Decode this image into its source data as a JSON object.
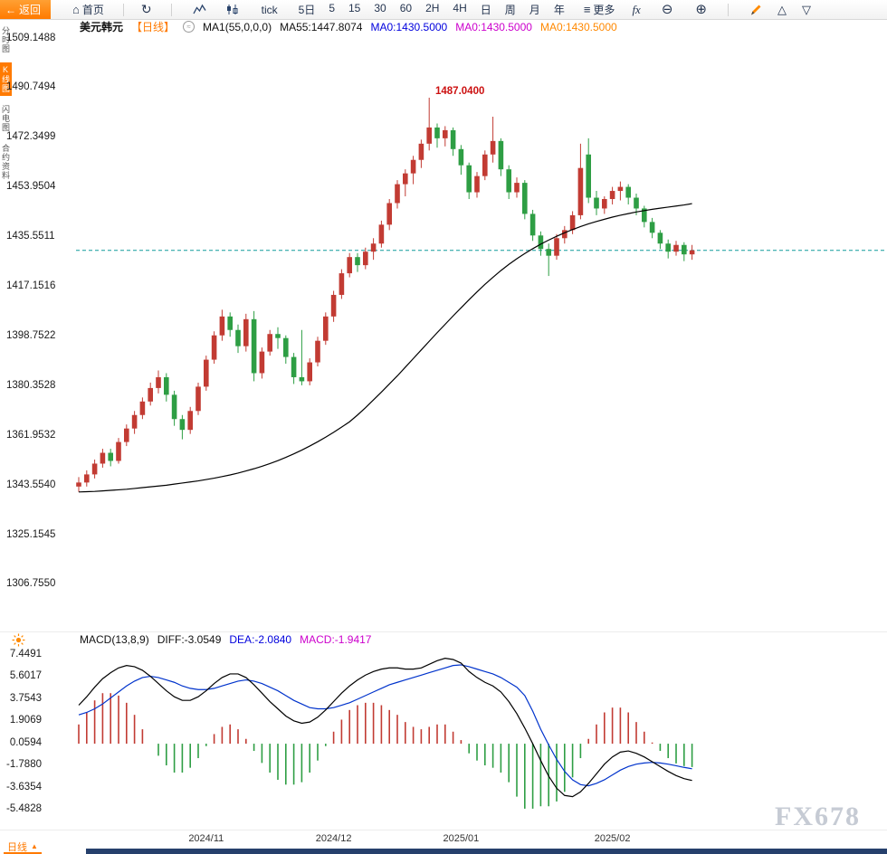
{
  "toolbar": {
    "back_label": "返回",
    "home_label": "首页",
    "tick_label": "tick",
    "periods": [
      "5日",
      "5",
      "15",
      "30",
      "60",
      "2H",
      "4H",
      "日",
      "周",
      "月",
      "年"
    ],
    "more_label": "更多",
    "fx_label": "fx",
    "accent_color": "#ff7a00"
  },
  "sidebar": {
    "items": [
      {
        "name": "sidebar-tab-time-chart",
        "label": "分时图",
        "active": false
      },
      {
        "name": "sidebar-tab-kline-chart",
        "label": "K线图",
        "active": true
      },
      {
        "name": "sidebar-tab-lightning-chart",
        "label": "闪电图",
        "active": false
      },
      {
        "name": "sidebar-tab-contract-info",
        "label": "合约资料",
        "active": false
      }
    ]
  },
  "chart_header": {
    "symbol": "美元韩元",
    "period_tag": "【日线】",
    "ma_param": "MA1(55,0,0,0)",
    "ma55_value": "MA55:1447.8074",
    "ma0_blue": "MA0:1430.5000",
    "ma0_magenta": "MA0:1430.5000",
    "ma0_orange": "MA0:1430.5000"
  },
  "macd_header": {
    "param": "MACD(13,8,9)",
    "diff_label": "DIFF:-3.0549",
    "dea_label": "DEA:-2.0840",
    "macd_label": "MACD:-1.9417"
  },
  "peak_label": "1487.0400",
  "footer": {
    "tab": "日线",
    "arrow": "▲"
  },
  "watermark": "FX678",
  "chart_data": {
    "type": "candlestick",
    "title": "美元韩元 日线 (USD/KRW Daily) with MA55 and MACD(13,8,9)",
    "price_axis_labels": [
      "1509.1488",
      "1490.7494",
      "1472.3499",
      "1453.9504",
      "1435.5511",
      "1417.1516",
      "1398.7522",
      "1380.3528",
      "1361.9532",
      "1343.5540",
      "1325.1545",
      "1306.7550"
    ],
    "macd_axis_labels": [
      "7.4491",
      "5.6017",
      "3.7543",
      "1.9069",
      "0.0594",
      "-1.7880",
      "-3.6354",
      "-5.4828"
    ],
    "x_axis_labels": [
      {
        "label": "2024/11",
        "index": 16
      },
      {
        "label": "2024/12",
        "index": 32
      },
      {
        "label": "2025/01",
        "index": 48
      },
      {
        "label": "2025/02",
        "index": 67
      }
    ],
    "price_range": {
      "top": 1509.1488,
      "bottom": 1306.755
    },
    "macd_range": {
      "top": 7.4491,
      "bottom": -5.4828
    },
    "last_price": 1430.5,
    "peak_price": 1487.04,
    "candles_ohlc": [
      [
        1343.0,
        1346.5,
        1341.0,
        1344.5
      ],
      [
        1344.5,
        1349.0,
        1343.0,
        1347.5
      ],
      [
        1347.5,
        1353.0,
        1346.0,
        1351.5
      ],
      [
        1351.5,
        1357.0,
        1350.0,
        1355.5
      ],
      [
        1355.5,
        1357.0,
        1350.5,
        1352.5
      ],
      [
        1352.5,
        1361.0,
        1351.5,
        1359.5
      ],
      [
        1359.5,
        1366.0,
        1358.0,
        1364.5
      ],
      [
        1364.5,
        1371.0,
        1362.5,
        1369.5
      ],
      [
        1369.5,
        1376.0,
        1368.0,
        1374.5
      ],
      [
        1374.5,
        1381.5,
        1373.0,
        1379.5
      ],
      [
        1379.5,
        1386.0,
        1377.5,
        1383.5
      ],
      [
        1383.5,
        1385.0,
        1374.5,
        1377.0
      ],
      [
        1377.0,
        1378.5,
        1365.5,
        1368.0
      ],
      [
        1368.0,
        1369.5,
        1360.5,
        1364.0
      ],
      [
        1364.0,
        1372.5,
        1362.5,
        1371.0
      ],
      [
        1371.0,
        1381.5,
        1369.5,
        1380.0
      ],
      [
        1380.0,
        1391.5,
        1378.5,
        1390.0
      ],
      [
        1390.0,
        1400.5,
        1388.5,
        1399.0
      ],
      [
        1399.0,
        1408.5,
        1397.0,
        1406.0
      ],
      [
        1406.0,
        1407.5,
        1398.5,
        1401.0
      ],
      [
        1401.0,
        1403.0,
        1392.5,
        1395.0
      ],
      [
        1395.0,
        1407.0,
        1393.0,
        1405.0
      ],
      [
        1405.0,
        1408.0,
        1382.0,
        1385.0
      ],
      [
        1385.0,
        1394.5,
        1383.0,
        1393.0
      ],
      [
        1393.0,
        1401.0,
        1391.5,
        1399.5
      ],
      [
        1399.5,
        1402.0,
        1394.0,
        1398.0
      ],
      [
        1398.0,
        1399.0,
        1388.5,
        1391.0
      ],
      [
        1391.0,
        1392.5,
        1381.0,
        1383.5
      ],
      [
        1383.5,
        1401.0,
        1380.5,
        1382.0
      ],
      [
        1382.0,
        1390.5,
        1380.5,
        1389.0
      ],
      [
        1389.0,
        1398.5,
        1387.5,
        1397.0
      ],
      [
        1397.0,
        1407.5,
        1395.5,
        1406.0
      ],
      [
        1406.0,
        1415.5,
        1404.0,
        1414.0
      ],
      [
        1414.0,
        1423.5,
        1412.5,
        1422.0
      ],
      [
        1422.0,
        1429.5,
        1420.5,
        1428.0
      ],
      [
        1428.0,
        1429.5,
        1422.5,
        1425.0
      ],
      [
        1425.0,
        1431.5,
        1423.5,
        1430.0
      ],
      [
        1430.0,
        1435.0,
        1427.0,
        1433.0
      ],
      [
        1433.0,
        1441.5,
        1431.5,
        1440.0
      ],
      [
        1440.0,
        1449.5,
        1438.0,
        1448.0
      ],
      [
        1448.0,
        1456.5,
        1446.0,
        1455.0
      ],
      [
        1455.0,
        1460.5,
        1450.5,
        1459.0
      ],
      [
        1459.0,
        1465.5,
        1455.0,
        1464.0
      ],
      [
        1464.0,
        1471.5,
        1461.0,
        1470.0
      ],
      [
        1470.0,
        1487.04,
        1467.5,
        1476.0
      ],
      [
        1476.0,
        1477.5,
        1468.5,
        1472.0
      ],
      [
        1472.0,
        1476.5,
        1469.0,
        1475.0
      ],
      [
        1475.0,
        1476.0,
        1465.5,
        1468.0
      ],
      [
        1468.0,
        1469.5,
        1458.5,
        1462.0
      ],
      [
        1462.0,
        1463.0,
        1449.5,
        1452.0
      ],
      [
        1452.0,
        1459.5,
        1450.0,
        1458.0
      ],
      [
        1458.0,
        1467.5,
        1456.5,
        1466.0
      ],
      [
        1466.0,
        1480.0,
        1463.0,
        1471.0
      ],
      [
        1471.0,
        1472.0,
        1458.0,
        1460.5
      ],
      [
        1460.5,
        1462.0,
        1449.5,
        1452.0
      ],
      [
        1452.0,
        1457.5,
        1450.0,
        1455.5
      ],
      [
        1455.5,
        1456.5,
        1442.0,
        1444.0
      ],
      [
        1444.0,
        1445.5,
        1434.0,
        1436.0
      ],
      [
        1436.0,
        1437.5,
        1428.5,
        1431.0
      ],
      [
        1431.0,
        1433.0,
        1421.0,
        1428.5
      ],
      [
        1428.5,
        1436.5,
        1427.0,
        1435.0
      ],
      [
        1435.0,
        1439.5,
        1433.0,
        1438.0
      ],
      [
        1438.0,
        1445.0,
        1436.5,
        1443.5
      ],
      [
        1443.5,
        1470.0,
        1442.0,
        1461.0
      ],
      [
        1466.0,
        1472.0,
        1448.0,
        1450.0
      ],
      [
        1450.0,
        1452.5,
        1443.5,
        1446.0
      ],
      [
        1446.0,
        1450.5,
        1444.0,
        1449.5
      ],
      [
        1449.5,
        1454.0,
        1447.5,
        1452.5
      ],
      [
        1452.5,
        1456.0,
        1449.0,
        1454.0
      ],
      [
        1454.0,
        1455.0,
        1447.5,
        1450.0
      ],
      [
        1450.0,
        1451.5,
        1443.5,
        1446.0
      ],
      [
        1446.0,
        1447.0,
        1439.0,
        1441.0
      ],
      [
        1441.0,
        1442.5,
        1435.0,
        1437.0
      ],
      [
        1437.0,
        1438.0,
        1431.0,
        1433.0
      ],
      [
        1433.0,
        1434.5,
        1427.5,
        1430.0
      ],
      [
        1430.0,
        1434.0,
        1428.5,
        1432.5
      ],
      [
        1432.5,
        1433.5,
        1426.5,
        1429.0
      ],
      [
        1429.0,
        1432.5,
        1427.0,
        1430.5
      ]
    ],
    "ma55": [
      1341.0,
      1341.1,
      1341.2,
      1341.4,
      1341.6,
      1341.8,
      1342.0,
      1342.3,
      1342.6,
      1342.9,
      1343.2,
      1343.5,
      1343.9,
      1344.3,
      1344.7,
      1345.1,
      1345.6,
      1346.1,
      1346.7,
      1347.3,
      1348.0,
      1348.8,
      1349.6,
      1350.5,
      1351.5,
      1352.6,
      1353.8,
      1355.1,
      1356.5,
      1358.0,
      1359.6,
      1361.3,
      1363.1,
      1365.0,
      1367.0,
      1369.5,
      1372.2,
      1375.1,
      1378.0,
      1381.0,
      1384.0,
      1387.2,
      1390.4,
      1393.6,
      1396.8,
      1400.0,
      1403.1,
      1406.2,
      1409.2,
      1412.2,
      1415.1,
      1417.9,
      1420.5,
      1423.0,
      1425.3,
      1427.4,
      1429.3,
      1431.1,
      1432.8,
      1434.3,
      1435.7,
      1437.0,
      1438.2,
      1439.3,
      1440.3,
      1441.2,
      1442.0,
      1442.8,
      1443.5,
      1444.1,
      1444.7,
      1445.2,
      1445.7,
      1446.1,
      1446.5,
      1446.9,
      1447.3,
      1447.8
    ],
    "macd": {
      "diff": [
        3.2,
        3.9,
        4.7,
        5.4,
        5.9,
        6.3,
        6.5,
        6.4,
        6.1,
        5.6,
        5.0,
        4.4,
        3.9,
        3.6,
        3.6,
        3.9,
        4.4,
        5.0,
        5.5,
        5.8,
        5.8,
        5.5,
        4.9,
        4.2,
        3.5,
        2.9,
        2.3,
        1.9,
        1.7,
        1.8,
        2.2,
        2.8,
        3.5,
        4.2,
        4.8,
        5.3,
        5.7,
        6.0,
        6.2,
        6.3,
        6.3,
        6.2,
        6.2,
        6.3,
        6.6,
        6.9,
        7.1,
        7.0,
        6.7,
        6.0,
        5.5,
        5.1,
        4.8,
        4.3,
        3.5,
        2.5,
        1.3,
        0.0,
        -1.4,
        -2.7,
        -3.7,
        -4.3,
        -4.4,
        -4.0,
        -3.3,
        -2.5,
        -1.7,
        -1.1,
        -0.7,
        -0.6,
        -0.8,
        -1.1,
        -1.5,
        -1.9,
        -2.3,
        -2.65,
        -2.9,
        -3.0549
      ],
      "dea": [
        2.4,
        2.6,
        2.9,
        3.3,
        3.8,
        4.3,
        4.8,
        5.2,
        5.5,
        5.6,
        5.5,
        5.3,
        5.1,
        4.8,
        4.6,
        4.5,
        4.5,
        4.6,
        4.8,
        5.0,
        5.2,
        5.3,
        5.2,
        5.0,
        4.7,
        4.4,
        4.0,
        3.6,
        3.3,
        3.0,
        2.9,
        2.9,
        3.0,
        3.2,
        3.4,
        3.7,
        4.0,
        4.3,
        4.6,
        4.9,
        5.1,
        5.3,
        5.5,
        5.7,
        5.9,
        6.1,
        6.3,
        6.5,
        6.55,
        6.4,
        6.2,
        6.0,
        5.8,
        5.5,
        5.1,
        4.7,
        4.0,
        2.7,
        1.2,
        -0.1,
        -1.3,
        -2.3,
        -3.0,
        -3.4,
        -3.5,
        -3.3,
        -3.0,
        -2.6,
        -2.2,
        -1.9,
        -1.7,
        -1.6,
        -1.55,
        -1.6,
        -1.7,
        -1.83,
        -1.97,
        -2.084
      ],
      "histogram_formula": "2*(diff-dea)"
    },
    "colors": {
      "up": "#c23b33",
      "down": "#2e9e44",
      "ma55": "#000000",
      "diff_line": "#000000",
      "dea_line": "#0033cc",
      "last_price_line": "#119c9c",
      "peak_label": "#cc1111"
    }
  }
}
